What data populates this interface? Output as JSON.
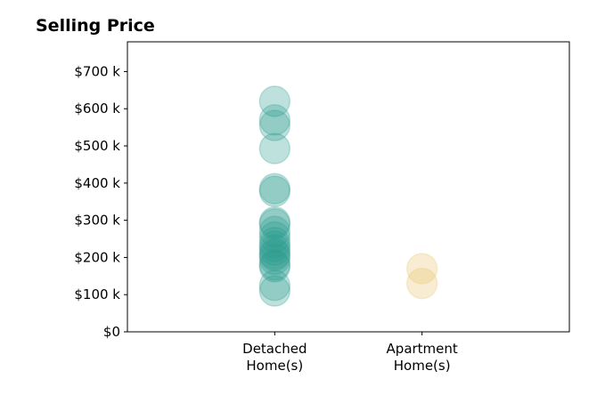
{
  "chart_data": {
    "type": "scatter",
    "title": "Selling Price",
    "xlabel": "",
    "ylabel": "",
    "categories": [
      "Detached\nHome(s)",
      "Apartment\nHome(s)"
    ],
    "xlim": [
      -0.5,
      2.5
    ],
    "ylim": [
      0,
      780000
    ],
    "y_ticks": [
      0,
      100000,
      200000,
      300000,
      400000,
      500000,
      600000,
      700000
    ],
    "y_tick_labels": [
      "$0",
      "$100 k",
      "$200 k",
      "$300 k",
      "$400 k",
      "$500 k",
      "$600 k",
      "$700 k"
    ],
    "grid": false,
    "legend": "none",
    "series": [
      {
        "category_index": 0,
        "color": "#2a9d8f",
        "opacity": 0.3,
        "values": [
          620000,
          570000,
          555000,
          493000,
          385000,
          378000,
          295000,
          290000,
          270000,
          255000,
          240000,
          230000,
          220000,
          210000,
          205000,
          195000,
          180000,
          175000,
          125000,
          110000
        ]
      },
      {
        "category_index": 1,
        "color": "#e9c46a",
        "opacity": 0.3,
        "values": [
          170000,
          130000
        ]
      }
    ]
  }
}
